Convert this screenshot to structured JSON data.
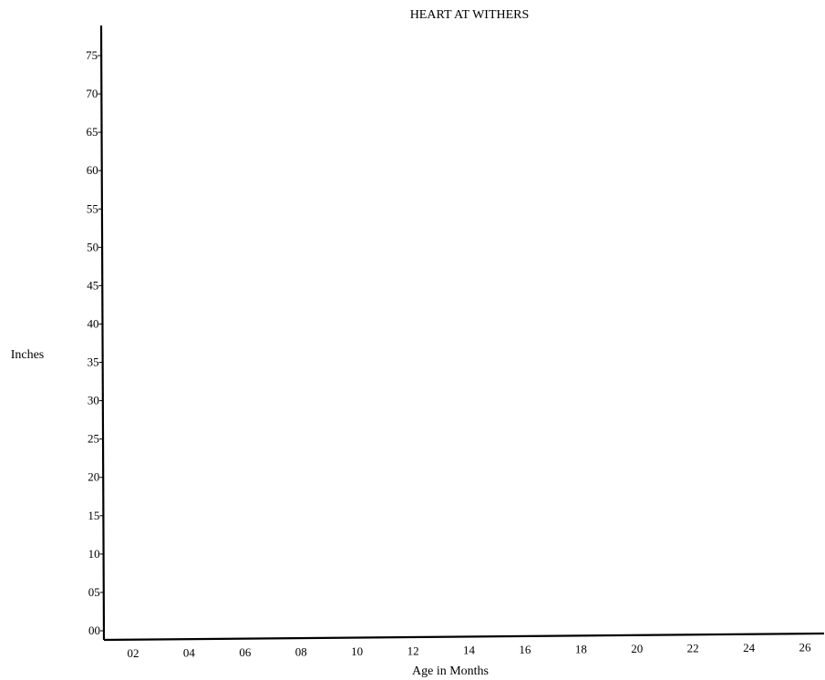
{
  "chart_data": {
    "type": "line",
    "title": "HEART AT WITHERS",
    "xlabel": "Age in Months",
    "ylabel": "Inches",
    "x_tick_labels": [
      "02",
      "04",
      "06",
      "08",
      "10",
      "12",
      "14",
      "16",
      "18",
      "20",
      "22",
      "24",
      "26"
    ],
    "y_tick_labels": [
      "00",
      "05",
      "10",
      "15",
      "20",
      "25",
      "30",
      "35",
      "40",
      "45",
      "50",
      "55",
      "60",
      "65",
      "70",
      "75"
    ],
    "xlim": [
      1,
      26.5
    ],
    "ylim": [
      0,
      78
    ],
    "series": [],
    "grid": false,
    "legend": "none"
  },
  "colors": {
    "axis": "#000000",
    "text": "#000000",
    "background": "#ffffff"
  }
}
